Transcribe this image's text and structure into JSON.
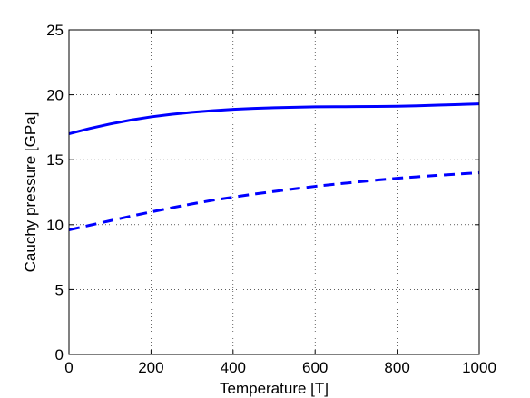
{
  "chart_data": {
    "type": "line",
    "title": "",
    "xlabel": "Temperature [T]",
    "ylabel": "Cauchy pressure [GPa]",
    "xlim": [
      0,
      1000
    ],
    "ylim": [
      0,
      25
    ],
    "xticks": [
      0,
      200,
      400,
      600,
      800,
      1000
    ],
    "yticks": [
      0,
      5,
      10,
      15,
      20,
      25
    ],
    "grid": true,
    "legend": "none",
    "series": [
      {
        "style": "solid",
        "color": "#0000ff",
        "x": [
          0,
          50,
          100,
          150,
          200,
          250,
          300,
          350,
          400,
          450,
          500,
          550,
          600,
          650,
          700,
          750,
          800,
          850,
          900,
          950,
          1000
        ],
        "y": [
          17.0,
          17.4,
          17.75,
          18.05,
          18.3,
          18.5,
          18.65,
          18.78,
          18.88,
          18.95,
          19.0,
          19.04,
          19.07,
          19.08,
          19.09,
          19.1,
          19.12,
          19.15,
          19.2,
          19.25,
          19.3
        ]
      },
      {
        "style": "dashed",
        "color": "#0000ff",
        "x": [
          0,
          50,
          100,
          150,
          200,
          250,
          300,
          350,
          400,
          450,
          500,
          550,
          600,
          650,
          700,
          750,
          800,
          850,
          900,
          950,
          1000
        ],
        "y": [
          9.6,
          9.95,
          10.3,
          10.65,
          10.98,
          11.3,
          11.6,
          11.88,
          12.12,
          12.35,
          12.56,
          12.76,
          12.95,
          13.12,
          13.28,
          13.43,
          13.57,
          13.69,
          13.8,
          13.9,
          14.0
        ]
      }
    ]
  }
}
